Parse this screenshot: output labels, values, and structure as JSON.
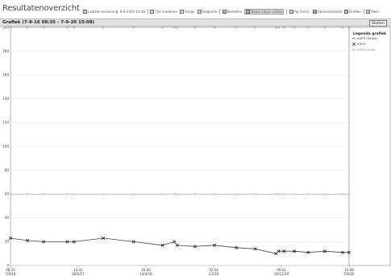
{
  "app": {
    "title": "Resultatenoverzicht"
  },
  "toolbar": {
    "items": [
      {
        "label": "Laatste verversing: 8-9-2020 14:48",
        "icon": "refresh-icon",
        "name": "refresh-button"
      },
      {
        "label": "Tijd markeren",
        "icon": "clock-icon",
        "name": "mark-time-button"
      },
      {
        "label": "Vorige",
        "icon": "arrow-left-icon",
        "name": "previous-button"
      },
      {
        "label": "Volgende",
        "icon": "arrow-right-icon",
        "name": "next-button"
      },
      {
        "label": "Bestellen",
        "icon": "order-icon",
        "name": "order-button"
      },
      {
        "label": "Naast elkaar zetten",
        "icon": "columns-icon",
        "name": "side-by-side-button"
      },
      {
        "label": "Rg Overz.",
        "icon": "list-icon",
        "name": "overview-button"
      },
      {
        "label": "Observatieblad",
        "icon": "sheet-icon",
        "name": "observation-sheet-button"
      },
      {
        "label": "Grafiek",
        "icon": "chart-icon",
        "name": "chart-button"
      },
      {
        "label": "Meer",
        "icon": "chevron-down-icon",
        "name": "more-button"
      }
    ]
  },
  "grafiek": {
    "title": "Grafiek  (7-9-16 08:35  -  7-9-20 15:08)",
    "close_label": "Sluiten"
  },
  "legend": {
    "title": "Legenda grafiek",
    "items": [
      {
        "label": "eGFR (limiet)",
        "icon": "curve-marker-icon"
      },
      {
        "label": "eGFR",
        "icon": "x-marker-icon"
      },
      {
        "label": "eGFR (Lmq)",
        "icon": "light-marker-icon"
      }
    ]
  },
  "chart_data": {
    "type": "line",
    "ylim": [
      0,
      200
    ],
    "yticks": [
      "0",
      "20",
      "40",
      "60",
      "80",
      "100",
      "120",
      "140",
      "160",
      "180",
      "200"
    ],
    "xticks": [
      {
        "time": "08:35",
        "date": "7/9/16"
      },
      {
        "time": "14:41",
        "date": "26/5/17"
      },
      {
        "time": "20:40",
        "date": "14/4/18"
      },
      {
        "time": "02:54",
        "date": "1/2/19"
      },
      {
        "time": "09:01",
        "date": "20/11/19"
      },
      {
        "time": "15:08",
        "date": "7/9/20"
      }
    ],
    "series": [
      {
        "name": "eGFR",
        "marker": "x",
        "x": [
          "2016-09-07",
          "2016-11-19",
          "2017-01-28",
          "2017-05-10",
          "2017-06-08",
          "2017-10-12",
          "2018-02-20",
          "2018-06-25",
          "2018-08-15",
          "2018-08-27",
          "2018-11-12",
          "2019-02-04",
          "2019-05-10",
          "2019-07-30",
          "2019-10-28",
          "2019-11-08",
          "2019-12-01",
          "2020-01-15",
          "2020-03-15",
          "2020-05-25",
          "2020-08-10",
          "2020-09-07"
        ],
        "values": [
          23,
          21,
          20,
          20,
          20,
          23,
          20,
          17,
          20,
          17,
          16,
          17,
          15,
          14,
          10,
          12,
          12,
          12,
          11,
          12,
          11,
          11
        ]
      },
      {
        "name": "eGFR (limiet)",
        "marker": "curve",
        "constant": 60
      },
      {
        "name": "eGFR (Lmq)",
        "marker": "curve-light",
        "constant": 200
      }
    ]
  }
}
